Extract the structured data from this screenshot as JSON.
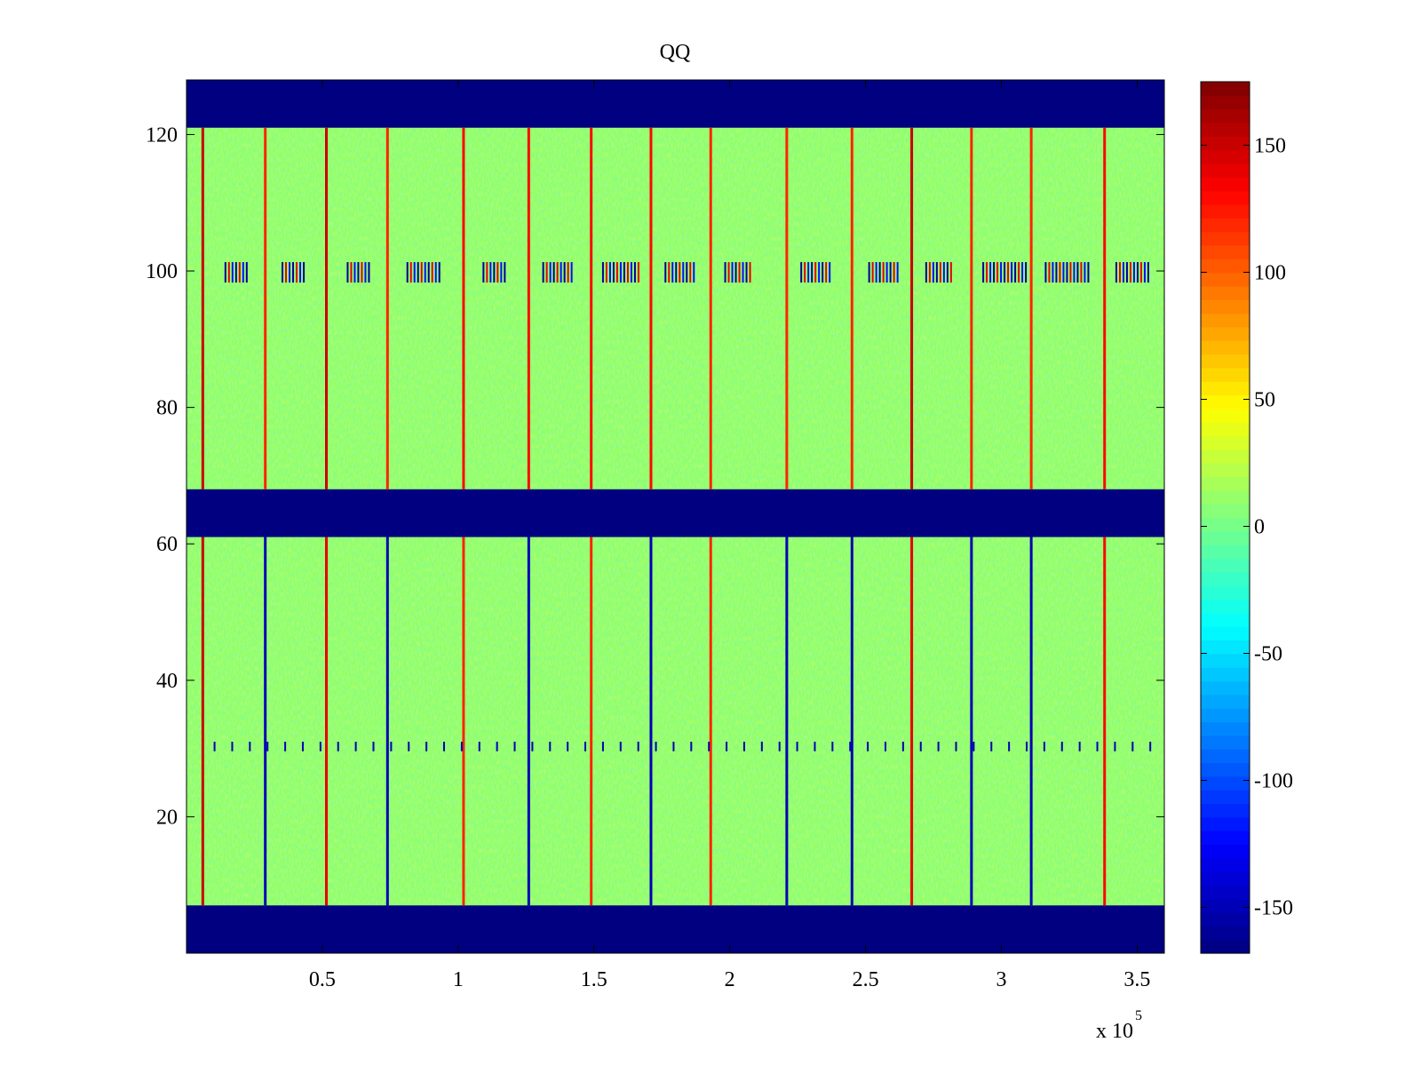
{
  "chart_data": {
    "type": "heatmap",
    "title": "QQ",
    "xlabel": "",
    "ylabel": "",
    "x_range": [
      0,
      360000
    ],
    "y_range": [
      0,
      128
    ],
    "x_ticks": [
      50000,
      100000,
      150000,
      200000,
      250000,
      300000,
      350000
    ],
    "x_tick_labels": [
      "0.5",
      "1",
      "1.5",
      "2",
      "2.5",
      "3",
      "3.5"
    ],
    "x_exponent_label": "x 10",
    "x_exponent_power": "5",
    "y_ticks": [
      20,
      40,
      60,
      80,
      100,
      120
    ],
    "y_tick_labels": [
      "20",
      "40",
      "60",
      "80",
      "100",
      "120"
    ],
    "colormap": "jet",
    "color_range": [
      -168,
      175
    ],
    "colorbar_ticks": [
      -150,
      -100,
      -50,
      0,
      50,
      100,
      150
    ],
    "colorbar_tick_labels": [
      "-150",
      "-100",
      "-50",
      "0",
      "50",
      "100",
      "150"
    ],
    "background_value": 10,
    "empty_bands": [
      {
        "y_from": 0,
        "y_to": 7,
        "value": -168
      },
      {
        "y_from": 61,
        "y_to": 68,
        "value": -168
      },
      {
        "y_from": 121,
        "y_to": 128,
        "value": -168
      }
    ],
    "vertical_features": [
      {
        "x": 6000,
        "segments": [
          {
            "y0": 7,
            "y1": 61,
            "value": 150
          },
          {
            "y0": 68,
            "y1": 121,
            "value": 150
          }
        ]
      },
      {
        "x": 29000,
        "segments": [
          {
            "y0": 7,
            "y1": 61,
            "value": -150
          },
          {
            "y0": 68,
            "y1": 121,
            "value": 120
          }
        ]
      },
      {
        "x": 51500,
        "segments": [
          {
            "y0": 7,
            "y1": 61,
            "value": 140
          },
          {
            "y0": 68,
            "y1": 121,
            "value": 150
          }
        ]
      },
      {
        "x": 74000,
        "segments": [
          {
            "y0": 7,
            "y1": 61,
            "value": -150
          },
          {
            "y0": 68,
            "y1": 121,
            "value": 120
          }
        ]
      },
      {
        "x": 102000,
        "segments": [
          {
            "y0": 7,
            "y1": 61,
            "value": 120
          },
          {
            "y0": 68,
            "y1": 121,
            "value": 130
          }
        ]
      },
      {
        "x": 126000,
        "segments": [
          {
            "y0": 7,
            "y1": 61,
            "value": -150
          },
          {
            "y0": 68,
            "y1": 121,
            "value": 130
          }
        ]
      },
      {
        "x": 149000,
        "segments": [
          {
            "y0": 7,
            "y1": 61,
            "value": 120
          },
          {
            "y0": 68,
            "y1": 121,
            "value": 130
          }
        ]
      },
      {
        "x": 171000,
        "segments": [
          {
            "y0": 7,
            "y1": 61,
            "value": -150
          },
          {
            "y0": 68,
            "y1": 121,
            "value": 130
          }
        ]
      },
      {
        "x": 193000,
        "segments": [
          {
            "y0": 7,
            "y1": 61,
            "value": 120
          },
          {
            "y0": 68,
            "y1": 121,
            "value": 120
          }
        ]
      },
      {
        "x": 221000,
        "segments": [
          {
            "y0": 7,
            "y1": 61,
            "value": -150
          },
          {
            "y0": 68,
            "y1": 121,
            "value": 120
          }
        ]
      },
      {
        "x": 245000,
        "segments": [
          {
            "y0": 7,
            "y1": 61,
            "value": -150
          },
          {
            "y0": 68,
            "y1": 121,
            "value": 120
          }
        ]
      },
      {
        "x": 267000,
        "segments": [
          {
            "y0": 7,
            "y1": 61,
            "value": 140
          },
          {
            "y0": 68,
            "y1": 121,
            "value": 150
          }
        ]
      },
      {
        "x": 289000,
        "segments": [
          {
            "y0": 7,
            "y1": 61,
            "value": -150
          },
          {
            "y0": 68,
            "y1": 121,
            "value": 120
          }
        ]
      },
      {
        "x": 311000,
        "segments": [
          {
            "y0": 7,
            "y1": 61,
            "value": -150
          },
          {
            "y0": 68,
            "y1": 121,
            "value": 120
          }
        ]
      },
      {
        "x": 338000,
        "segments": [
          {
            "y0": 7,
            "y1": 61,
            "value": 130
          },
          {
            "y0": 68,
            "y1": 121,
            "value": 130
          }
        ]
      }
    ],
    "row_100_bursts_x": [
      [
        14000,
        22000
      ],
      [
        35000,
        44000
      ],
      [
        59000,
        67000
      ],
      [
        81000,
        94000
      ],
      [
        109000,
        118000
      ],
      [
        131000,
        142000
      ],
      [
        153000,
        167000
      ],
      [
        176000,
        187000
      ],
      [
        198000,
        208000
      ],
      [
        226000,
        237000
      ],
      [
        251000,
        262000
      ],
      [
        272000,
        282000
      ],
      [
        293000,
        310000
      ],
      [
        316000,
        332000
      ],
      [
        342000,
        355000
      ]
    ],
    "row_30_markers": true
  }
}
